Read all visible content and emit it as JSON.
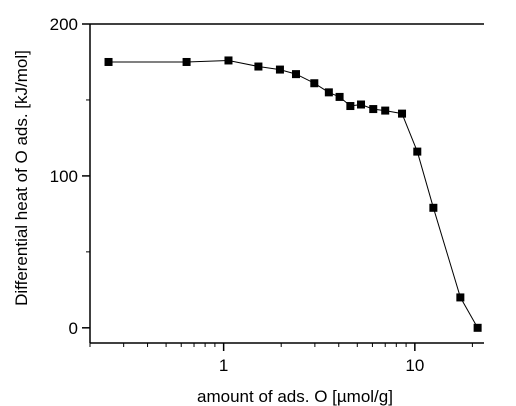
{
  "chart_data": {
    "type": "scatter",
    "title": "",
    "xlabel": "amount of ads. O  [µmol/g]",
    "ylabel": "Differential heat of O ads.  [kJ/mol]",
    "xscale": "log",
    "xlim": [
      0.2,
      23
    ],
    "ylim": [
      -10,
      200
    ],
    "x_ticks": [
      1,
      10
    ],
    "x_tick_labels": [
      "1",
      "10"
    ],
    "y_ticks": [
      0,
      100,
      200
    ],
    "y_tick_labels": [
      "0",
      "100",
      "200"
    ],
    "grid": false,
    "legend": "none",
    "line_connected": true,
    "marker": "square",
    "colors": {
      "marker": "#000000",
      "line": "#000000"
    },
    "series": [
      {
        "x": [
          0.25,
          0.64,
          1.06,
          1.52,
          1.97,
          2.39,
          2.98,
          3.55,
          4.04,
          4.6,
          5.23,
          6.06,
          7.0,
          8.57,
          10.3,
          12.5,
          17.3,
          21.3
        ],
        "y": [
          175,
          175,
          176,
          172,
          170,
          167,
          161,
          155,
          152,
          146,
          147,
          144,
          143,
          141,
          116,
          79,
          20,
          0
        ]
      }
    ]
  }
}
